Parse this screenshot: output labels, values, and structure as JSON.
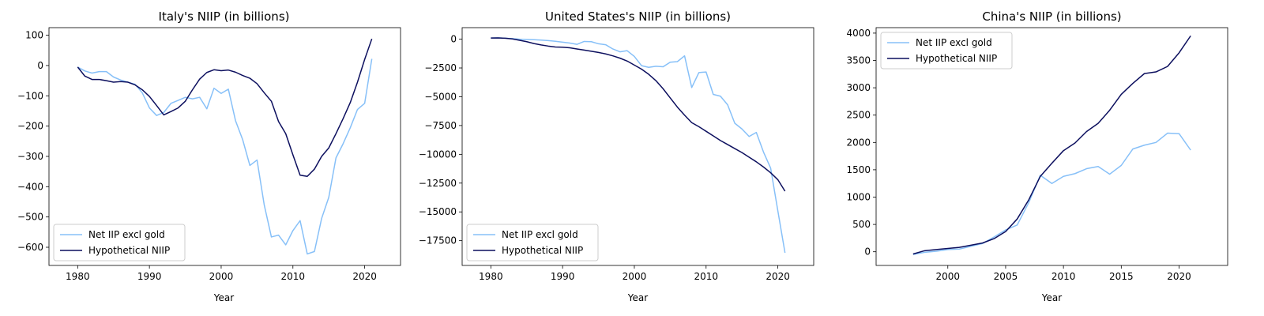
{
  "figure": {
    "colors": {
      "net_iip": "#87c0f8",
      "hypothetical": "#0c0f5e"
    }
  },
  "chart_data": [
    {
      "type": "line",
      "title": "Italy's NIIP (in billions)",
      "xlabel": "Year",
      "ylabel": "",
      "xlim": [
        1976,
        2025
      ],
      "ylim": [
        -660,
        125
      ],
      "xticks": [
        1980,
        1990,
        2000,
        2010,
        2020
      ],
      "yticks": [
        100,
        0,
        -100,
        -200,
        -300,
        -400,
        -500,
        -600
      ],
      "ytick_labels": [
        "100",
        "0",
        "−100",
        "−200",
        "−300",
        "−400",
        "−500",
        "−600"
      ],
      "legend": "lower-left",
      "series": [
        {
          "name": "Net IIP excl gold",
          "color": "#87c0f8",
          "x": [
            1980,
            1981,
            1982,
            1983,
            1984,
            1985,
            1986,
            1987,
            1988,
            1989,
            1990,
            1991,
            1992,
            1993,
            1994,
            1995,
            1996,
            1997,
            1998,
            1999,
            2000,
            2001,
            2002,
            2003,
            2004,
            2005,
            2006,
            2007,
            2008,
            2009,
            2010,
            2011,
            2012,
            2013,
            2014,
            2015,
            2016,
            2017,
            2018,
            2019,
            2020,
            2021
          ],
          "y": [
            -5,
            -18,
            -25,
            -20,
            -20,
            -38,
            -48,
            -55,
            -62,
            -90,
            -140,
            -165,
            -155,
            -125,
            -115,
            -105,
            -110,
            -105,
            -143,
            -75,
            -92,
            -78,
            -182,
            -245,
            -330,
            -312,
            -460,
            -566,
            -560,
            -592,
            -545,
            -512,
            -622,
            -614,
            -505,
            -435,
            -305,
            -258,
            -205,
            -145,
            -125,
            22
          ]
        },
        {
          "name": "Hypothetical NIIP",
          "color": "#0c0f5e",
          "x": [
            1980,
            1981,
            1982,
            1983,
            1984,
            1985,
            1986,
            1987,
            1988,
            1989,
            1990,
            1991,
            1992,
            1993,
            1994,
            1995,
            1996,
            1997,
            1998,
            1999,
            2000,
            2001,
            2002,
            2003,
            2004,
            2005,
            2006,
            2007,
            2008,
            2009,
            2010,
            2011,
            2012,
            2013,
            2014,
            2015,
            2016,
            2017,
            2018,
            2019,
            2020,
            2021
          ],
          "y": [
            -5,
            -35,
            -46,
            -46,
            -50,
            -55,
            -53,
            -55,
            -64,
            -80,
            -102,
            -132,
            -163,
            -152,
            -140,
            -118,
            -80,
            -45,
            -23,
            -14,
            -17,
            -15,
            -22,
            -33,
            -42,
            -60,
            -90,
            -118,
            -185,
            -225,
            -295,
            -362,
            -366,
            -342,
            -300,
            -272,
            -225,
            -175,
            -122,
            -55,
            20,
            88
          ]
        }
      ]
    },
    {
      "type": "line",
      "title": "United States's NIIP (in billions)",
      "xlabel": "Year",
      "ylabel": "",
      "xlim": [
        1976,
        2025
      ],
      "ylim": [
        -19650,
        1000
      ],
      "xticks": [
        1980,
        1990,
        2000,
        2010,
        2020
      ],
      "yticks": [
        0,
        -2500,
        -5000,
        -7500,
        -10000,
        -12500,
        -15000,
        -17500
      ],
      "ytick_labels": [
        "0",
        "−2500",
        "−5000",
        "−7500",
        "−10000",
        "−12500",
        "−15000",
        "−17500"
      ],
      "legend": "lower-left",
      "series": [
        {
          "name": "Net IIP excl gold",
          "color": "#87c0f8",
          "x": [
            1980,
            1981,
            1982,
            1983,
            1984,
            1985,
            1986,
            1987,
            1988,
            1989,
            1990,
            1991,
            1992,
            1993,
            1994,
            1995,
            1996,
            1997,
            1998,
            1999,
            2000,
            2001,
            2002,
            2003,
            2004,
            2005,
            2006,
            2007,
            2008,
            2009,
            2010,
            2011,
            2012,
            2013,
            2014,
            2015,
            2016,
            2017,
            2018,
            2019,
            2020,
            2021
          ],
          "y": [
            100,
            120,
            80,
            50,
            0,
            -30,
            -50,
            -80,
            -120,
            -180,
            -260,
            -340,
            -450,
            -200,
            -220,
            -400,
            -480,
            -850,
            -1100,
            -1000,
            -1500,
            -2300,
            -2450,
            -2350,
            -2400,
            -2000,
            -1950,
            -1450,
            -4200,
            -2900,
            -2850,
            -4800,
            -4950,
            -5700,
            -7300,
            -7800,
            -8450,
            -8100,
            -9800,
            -11200,
            -14900,
            -18550
          ]
        },
        {
          "name": "Hypothetical NIIP",
          "color": "#0c0f5e",
          "x": [
            1980,
            1981,
            1982,
            1983,
            1984,
            1985,
            1986,
            1987,
            1988,
            1989,
            1990,
            1991,
            1992,
            1993,
            1994,
            1995,
            1996,
            1997,
            1998,
            1999,
            2000,
            2001,
            2002,
            2003,
            2004,
            2005,
            2006,
            2007,
            2008,
            2009,
            2010,
            2011,
            2012,
            2013,
            2014,
            2015,
            2016,
            2017,
            2018,
            2019,
            2020,
            2021
          ],
          "y": [
            100,
            110,
            80,
            20,
            -100,
            -220,
            -380,
            -500,
            -600,
            -680,
            -700,
            -750,
            -850,
            -950,
            -1050,
            -1150,
            -1280,
            -1450,
            -1650,
            -1900,
            -2250,
            -2600,
            -3050,
            -3600,
            -4300,
            -5100,
            -5900,
            -6600,
            -7250,
            -7600,
            -8000,
            -8400,
            -8800,
            -9150,
            -9500,
            -9850,
            -10250,
            -10650,
            -11100,
            -11600,
            -12200,
            -13200
          ]
        }
      ]
    },
    {
      "type": "line",
      "title": "China's NIIP (in billions)",
      "xlabel": "Year",
      "ylabel": "",
      "xlim": [
        1993.8,
        2024.2
      ],
      "ylim": [
        -250,
        4100
      ],
      "xticks": [
        2000,
        2005,
        2010,
        2015,
        2020
      ],
      "yticks": [
        0,
        500,
        1000,
        1500,
        2000,
        2500,
        3000,
        3500,
        4000
      ],
      "ytick_labels": [
        "0",
        "500",
        "1000",
        "1500",
        "2000",
        "2500",
        "3000",
        "3500",
        "4000"
      ],
      "legend": "upper-left",
      "series": [
        {
          "name": "Net IIP excl gold",
          "color": "#87c0f8",
          "x": [
            1997,
            1998,
            1999,
            2000,
            2001,
            2002,
            2003,
            2004,
            2005,
            2006,
            2007,
            2008,
            2009,
            2010,
            2011,
            2012,
            2013,
            2014,
            2015,
            2016,
            2017,
            2018,
            2019,
            2020,
            2021
          ],
          "y": [
            -50,
            -10,
            10,
            40,
            50,
            100,
            150,
            270,
            400,
            490,
            900,
            1400,
            1250,
            1380,
            1430,
            1520,
            1560,
            1420,
            1580,
            1880,
            1950,
            2000,
            2170,
            2160,
            1860
          ]
        },
        {
          "name": "Hypothetical NIIP",
          "color": "#0c0f5e",
          "x": [
            1997,
            1998,
            1999,
            2000,
            2001,
            2002,
            2003,
            2004,
            2005,
            2006,
            2007,
            2008,
            2009,
            2010,
            2011,
            2012,
            2013,
            2014,
            2015,
            2016,
            2017,
            2018,
            2019,
            2020,
            2021
          ],
          "y": [
            -40,
            20,
            40,
            60,
            80,
            120,
            160,
            240,
            370,
            600,
            950,
            1380,
            1620,
            1850,
            1990,
            2200,
            2350,
            2590,
            2880,
            3080,
            3260,
            3290,
            3390,
            3640,
            3950
          ]
        }
      ]
    }
  ]
}
